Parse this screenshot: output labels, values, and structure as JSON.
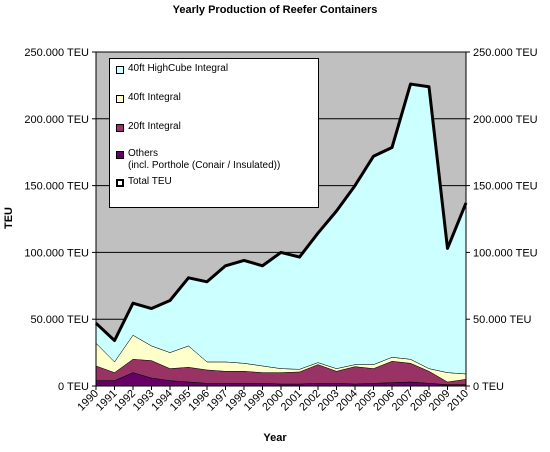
{
  "chart_data": {
    "type": "area",
    "title": "Yearly Production of Reefer Containers",
    "xlabel": "Year",
    "ylabel": "TEU",
    "x": [
      "1990",
      "1991",
      "1992",
      "1993",
      "1994",
      "1995",
      "1996",
      "1997",
      "1998",
      "1999",
      "2000",
      "2001",
      "2002",
      "2003",
      "2004",
      "2005",
      "2006",
      "2007",
      "2008",
      "2009",
      "2010"
    ],
    "ylim": [
      0,
      250000
    ],
    "y_ticks": [
      "0 TEU",
      "50.000 TEU",
      "100.000 TEU",
      "150.000 TEU",
      "200.000 TEU",
      "250.000 TEU"
    ],
    "grid": true,
    "legend_position": "top-left",
    "stacked": true,
    "series": [
      {
        "name": "Others\n(incl. Porthole (Conair / Insulated))",
        "color": "#660066",
        "values": [
          4000,
          4000,
          10000,
          6000,
          4000,
          3000,
          2000,
          2000,
          2000,
          2000,
          1500,
          1500,
          2000,
          2000,
          1500,
          2000,
          2500,
          3000,
          2000,
          1000,
          1000
        ]
      },
      {
        "name": "20ft Integral",
        "color": "#993366",
        "values": [
          11000,
          6000,
          10000,
          13000,
          9000,
          11000,
          10000,
          9000,
          9000,
          8000,
          8500,
          9000,
          14000,
          9000,
          13000,
          11000,
          16000,
          14000,
          9000,
          2000,
          4000
        ]
      },
      {
        "name": "40ft Integral",
        "color": "#FFFFCC",
        "values": [
          17000,
          8000,
          18000,
          11000,
          12000,
          16000,
          6000,
          7000,
          6000,
          5000,
          3000,
          2000,
          1500,
          2000,
          1500,
          3000,
          3000,
          3000,
          2000,
          7000,
          4000
        ]
      },
      {
        "name": "40ft HighCube Integral",
        "color": "#CCFFFF",
        "values": [
          15000,
          16000,
          24000,
          28000,
          39000,
          51000,
          60000,
          72000,
          77000,
          75000,
          87000,
          84000,
          97000,
          118000,
          134000,
          156000,
          157000,
          206000,
          211000,
          93000,
          128000
        ]
      }
    ],
    "total": {
      "name": "Total TEU",
      "color": "#000000",
      "values": [
        47000,
        34000,
        62000,
        58000,
        64000,
        81000,
        78000,
        90000,
        94000,
        90000,
        100000,
        96500,
        114500,
        131000,
        150000,
        172000,
        178500,
        226000,
        224000,
        103000,
        137000
      ]
    }
  }
}
